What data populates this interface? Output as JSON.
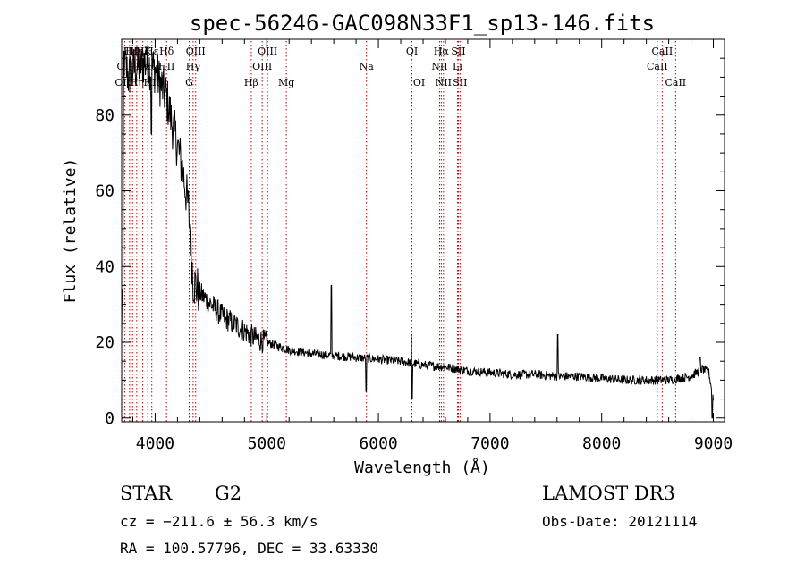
{
  "chart_data": {
    "type": "line",
    "title": "spec-56246-GAC098N33F1_sp13-146.fits",
    "xlabel": "Wavelength (Å)",
    "ylabel": "Flux (relative)",
    "xlim": [
      3700,
      9100
    ],
    "ylim": [
      -1,
      100
    ],
    "xticks": [
      4000,
      5000,
      6000,
      7000,
      8000,
      9000
    ],
    "yticks": [
      0,
      20,
      40,
      60,
      80
    ],
    "continuum": {
      "x": [
        3700,
        3720,
        3760,
        3800,
        3850,
        3900,
        3950,
        4000,
        4050,
        4100,
        4150,
        4200,
        4250,
        4300,
        4340,
        4400,
        4500,
        4600,
        4700,
        4800,
        4900,
        5000,
        5200,
        5400,
        5600,
        5800,
        6000,
        6200,
        6400,
        6600,
        6800,
        7000,
        7200,
        7400,
        7600,
        7800,
        8000,
        8200,
        8400,
        8600,
        8800,
        8900,
        8960,
        9000
      ],
      "y": [
        20,
        95,
        90,
        92,
        93,
        94,
        93,
        92,
        88,
        85,
        78,
        72,
        65,
        55,
        36,
        33,
        30,
        27,
        25,
        23,
        21,
        20,
        18,
        17,
        16.5,
        16,
        15.5,
        15,
        14,
        13.5,
        12.5,
        12,
        11.5,
        11.5,
        11,
        11,
        10.5,
        10,
        10,
        10,
        11,
        13,
        12,
        5
      ]
    },
    "spikes": [
      {
        "x": 5577,
        "y": 35
      },
      {
        "x": 6300,
        "y": 22
      },
      {
        "x": 7605,
        "y": 22
      },
      {
        "x": 3710,
        "y": 34
      },
      {
        "x": 4630,
        "y": 26
      },
      {
        "x": 8880,
        "y": 16
      }
    ],
    "dips": [
      {
        "x": 5890,
        "y": 7
      },
      {
        "x": 6302,
        "y": 5
      },
      {
        "x": 3965,
        "y": 75
      },
      {
        "x": 8990,
        "y": 0
      }
    ],
    "line_markers": [
      {
        "label": "OII",
        "x": 3727,
        "row": 1
      },
      {
        "label": "OIII",
        "x": 3727,
        "row": 2
      },
      {
        "label": "Hι",
        "x": 3771,
        "row": 0
      },
      {
        "label": "Hθ",
        "x": 3798,
        "row": 0
      },
      {
        "label": "Hη",
        "x": 3835,
        "row": 0
      },
      {
        "label": "Hη",
        "x": 3835,
        "row": 2
      },
      {
        "label": "Hζ",
        "x": 3889,
        "row": 0
      },
      {
        "label": "He",
        "x": 3889,
        "row": 1
      },
      {
        "label": "K",
        "x": 3934,
        "row": 0
      },
      {
        "label": "Hε",
        "x": 3970,
        "row": 0
      },
      {
        "label": "H",
        "x": 3970,
        "row": 1
      },
      {
        "label": "HII",
        "x": 3970,
        "row": 2
      },
      {
        "label": "Hδ",
        "x": 4102,
        "row": 0
      },
      {
        "label": "HII",
        "x": 4102,
        "row": 1
      },
      {
        "label": "OIII",
        "x": 4363,
        "row": 0
      },
      {
        "label": "Hγ",
        "x": 4340,
        "row": 1
      },
      {
        "label": "G",
        "x": 4305,
        "row": 2
      },
      {
        "label": "OIII",
        "x": 5007,
        "row": 0
      },
      {
        "label": "OIII",
        "x": 4959,
        "row": 1
      },
      {
        "label": "Hβ",
        "x": 4861,
        "row": 2
      },
      {
        "label": "Mg",
        "x": 5175,
        "row": 2
      },
      {
        "label": "Na",
        "x": 5893,
        "row": 1
      },
      {
        "label": "OI",
        "x": 6300,
        "row": 0
      },
      {
        "label": "OI",
        "x": 6364,
        "row": 2
      },
      {
        "label": "Hα",
        "x": 6563,
        "row": 0
      },
      {
        "label": "NII",
        "x": 6548,
        "row": 1
      },
      {
        "label": "NII",
        "x": 6583,
        "row": 2
      },
      {
        "label": "SII",
        "x": 6716,
        "row": 0
      },
      {
        "label": "Li",
        "x": 6708,
        "row": 1
      },
      {
        "label": "SII",
        "x": 6731,
        "row": 2
      },
      {
        "label": "CaII",
        "x": 8542,
        "row": 0
      },
      {
        "label": "CaII",
        "x": 8498,
        "row": 1
      },
      {
        "label": "CaII",
        "x": 8662,
        "row": 2
      }
    ]
  },
  "info": {
    "object_class": "STAR",
    "subclass": "G2",
    "survey": "LAMOST DR3",
    "cz": "cz = −211.6 ± 56.3 km/s",
    "obs_date": "Obs-Date: 20121114",
    "radec": "RA = 100.57796, DEC =  33.63330"
  }
}
